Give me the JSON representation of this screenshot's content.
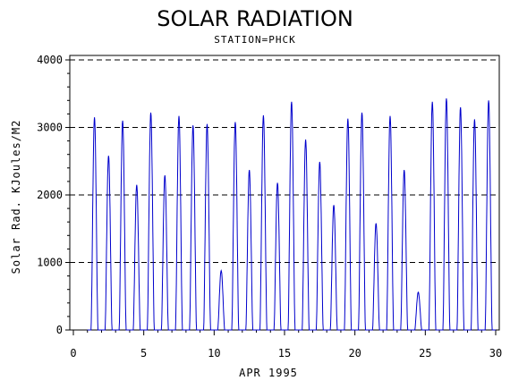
{
  "chart_data": {
    "type": "line",
    "title": "SOLAR RADIATION",
    "subtitle": "STATION=PHCK",
    "xlabel": "APR 1995",
    "ylabel": "Solar Rad. KJoules/M2",
    "xlim": [
      0,
      30
    ],
    "ylim": [
      0,
      4000
    ],
    "xticks": [
      0,
      5,
      10,
      15,
      20,
      25,
      30
    ],
    "yticks": [
      0,
      1000,
      2000,
      3000,
      4000
    ],
    "grid": "horizontal dashed",
    "line_color": "#0000cc",
    "daily_peaks": [
      {
        "day": 1,
        "peak": 3150
      },
      {
        "day": 2,
        "peak": 2580
      },
      {
        "day": 3,
        "peak": 3100
      },
      {
        "day": 4,
        "peak": 2150
      },
      {
        "day": 5,
        "peak": 3220
      },
      {
        "day": 6,
        "peak": 2290
      },
      {
        "day": 7,
        "peak": 3170
      },
      {
        "day": 8,
        "peak": 3030
      },
      {
        "day": 9,
        "peak": 3050
      },
      {
        "day": 10,
        "peak": 880
      },
      {
        "day": 11,
        "peak": 3080
      },
      {
        "day": 12,
        "peak": 2370
      },
      {
        "day": 13,
        "peak": 3180
      },
      {
        "day": 14,
        "peak": 2180
      },
      {
        "day": 15,
        "peak": 3380
      },
      {
        "day": 16,
        "peak": 2820
      },
      {
        "day": 17,
        "peak": 2490
      },
      {
        "day": 18,
        "peak": 1850
      },
      {
        "day": 19,
        "peak": 3130
      },
      {
        "day": 20,
        "peak": 3220
      },
      {
        "day": 21,
        "peak": 1580
      },
      {
        "day": 22,
        "peak": 3170
      },
      {
        "day": 23,
        "peak": 2370
      },
      {
        "day": 24,
        "peak": 560
      },
      {
        "day": 25,
        "peak": 3380
      },
      {
        "day": 26,
        "peak": 3430
      },
      {
        "day": 27,
        "peak": 3300
      },
      {
        "day": 28,
        "peak": 3120
      },
      {
        "day": 29,
        "peak": 3400
      }
    ]
  }
}
